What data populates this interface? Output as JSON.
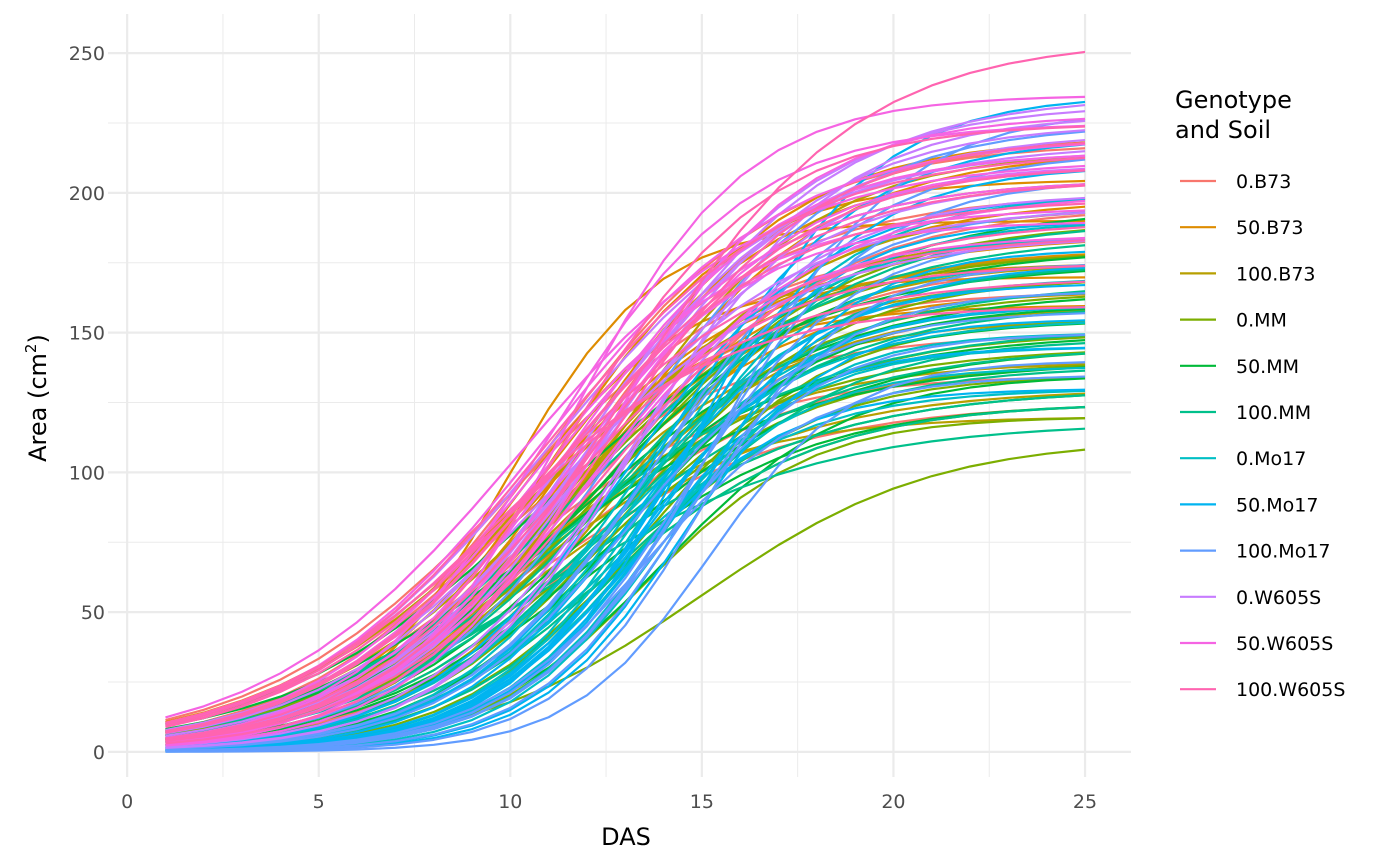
{
  "chart_data": {
    "type": "line",
    "xlabel": "DAS",
    "ylabel": {
      "prefix": "Area (cm",
      "superscript": "2",
      "suffix": ")"
    },
    "xlim": [
      -0.5,
      26.2
    ],
    "ylim": [
      -9,
      264
    ],
    "x_ticks": [
      0,
      5,
      10,
      15,
      20,
      25
    ],
    "x_tick_labels": [
      "0",
      "5",
      "10",
      "15",
      "20",
      "25"
    ],
    "y_ticks": [
      0,
      50,
      100,
      150,
      200,
      250
    ],
    "y_tick_labels": [
      "0",
      "50",
      "100",
      "150",
      "200",
      "250"
    ],
    "grid": true,
    "theme": "minimal",
    "legend": {
      "title_lines": [
        "Genotype",
        "and Soil"
      ],
      "position": "right"
    },
    "x": [
      1,
      2,
      3,
      4,
      5,
      6,
      7,
      8,
      9,
      10,
      11,
      12,
      13,
      14,
      15,
      16,
      17,
      18,
      19,
      20,
      21,
      22,
      23,
      24,
      25
    ],
    "series": [
      {
        "name": "0.B73",
        "color": "#F8766D",
        "curves": [
          {
            "asym": 218,
            "mid": 11.0,
            "scale": 3.0
          },
          {
            "asym": 200,
            "mid": 10.5,
            "scale": 3.2
          },
          {
            "asym": 185,
            "mid": 10.0,
            "scale": 3.3
          },
          {
            "asym": 165,
            "mid": 10.0,
            "scale": 3.0
          },
          {
            "asym": 150,
            "mid": 9.5,
            "scale": 3.2
          },
          {
            "asym": 135,
            "mid": 9.8,
            "scale": 3.0
          },
          {
            "asym": 125,
            "mid": 10.5,
            "scale": 3.4
          },
          {
            "asym": 220,
            "mid": 12.0,
            "scale": 2.9
          },
          {
            "asym": 175,
            "mid": 11.5,
            "scale": 3.1
          },
          {
            "asym": 160,
            "mid": 12.5,
            "scale": 2.8
          },
          {
            "asym": 140,
            "mid": 11.0,
            "scale": 3.3
          },
          {
            "asym": 195,
            "mid": 12.5,
            "scale": 3.0
          }
        ]
      },
      {
        "name": "50.B73",
        "color": "#DE8C00",
        "curves": [
          {
            "asym": 190,
            "mid": 9.8,
            "scale": 2.0
          },
          {
            "asym": 170,
            "mid": 9.8,
            "scale": 2.3
          },
          {
            "asym": 205,
            "mid": 11.0,
            "scale": 2.5
          },
          {
            "asym": 185,
            "mid": 10.5,
            "scale": 3.4
          },
          {
            "asym": 220,
            "mid": 11.8,
            "scale": 2.8
          },
          {
            "asym": 160,
            "mid": 10.0,
            "scale": 2.6
          },
          {
            "asym": 180,
            "mid": 11.5,
            "scale": 3.0
          },
          {
            "asym": 215,
            "mid": 12.5,
            "scale": 2.9
          },
          {
            "asym": 198,
            "mid": 12.0,
            "scale": 3.1
          },
          {
            "asym": 175,
            "mid": 10.8,
            "scale": 2.7
          },
          {
            "asym": 210,
            "mid": 11.2,
            "scale": 3.0
          },
          {
            "asym": 165,
            "mid": 11.5,
            "scale": 2.8
          }
        ]
      },
      {
        "name": "100.B73",
        "color": "#B79F00",
        "curves": [
          {
            "asym": 205,
            "mid": 11.0,
            "scale": 3.0
          },
          {
            "asym": 185,
            "mid": 11.5,
            "scale": 2.8
          },
          {
            "asym": 170,
            "mid": 10.8,
            "scale": 3.2
          },
          {
            "asym": 155,
            "mid": 11.0,
            "scale": 2.9
          },
          {
            "asym": 140,
            "mid": 10.5,
            "scale": 3.1
          },
          {
            "asym": 120,
            "mid": 10.0,
            "scale": 2.8
          },
          {
            "asym": 215,
            "mid": 12.5,
            "scale": 2.7
          },
          {
            "asym": 195,
            "mid": 12.0,
            "scale": 2.9
          },
          {
            "asym": 175,
            "mid": 12.5,
            "scale": 2.6
          },
          {
            "asym": 160,
            "mid": 11.8,
            "scale": 3.0
          },
          {
            "asym": 130,
            "mid": 11.0,
            "scale": 3.3
          },
          {
            "asym": 180,
            "mid": 10.5,
            "scale": 3.4
          }
        ]
      },
      {
        "name": "0.MM",
        "color": "#7CAE00",
        "curves": [
          {
            "asym": 112,
            "mid": 15.0,
            "scale": 3.0
          },
          {
            "asym": 150,
            "mid": 12.5,
            "scale": 2.8
          },
          {
            "asym": 135,
            "mid": 13.0,
            "scale": 2.5
          },
          {
            "asym": 165,
            "mid": 12.0,
            "scale": 3.0
          },
          {
            "asym": 180,
            "mid": 11.5,
            "scale": 3.2
          },
          {
            "asym": 125,
            "mid": 12.5,
            "scale": 2.9
          },
          {
            "asym": 145,
            "mid": 11.0,
            "scale": 3.3
          },
          {
            "asym": 190,
            "mid": 12.5,
            "scale": 3.1
          },
          {
            "asym": 155,
            "mid": 13.5,
            "scale": 2.4
          },
          {
            "asym": 170,
            "mid": 13.0,
            "scale": 2.7
          },
          {
            "asym": 120,
            "mid": 13.5,
            "scale": 2.2
          },
          {
            "asym": 140,
            "mid": 12.0,
            "scale": 3.0
          }
        ]
      },
      {
        "name": "50.MM",
        "color": "#00BA38",
        "curves": [
          {
            "asym": 135,
            "mid": 14.0,
            "scale": 2.4
          },
          {
            "asym": 150,
            "mid": 11.0,
            "scale": 3.5
          },
          {
            "asym": 165,
            "mid": 11.5,
            "scale": 3.4
          },
          {
            "asym": 180,
            "mid": 12.0,
            "scale": 3.2
          },
          {
            "asym": 125,
            "mid": 12.0,
            "scale": 3.0
          },
          {
            "asym": 195,
            "mid": 12.5,
            "scale": 3.3
          },
          {
            "asym": 140,
            "mid": 10.5,
            "scale": 3.6
          },
          {
            "asym": 160,
            "mid": 13.0,
            "scale": 2.6
          },
          {
            "asym": 145,
            "mid": 12.5,
            "scale": 3.1
          },
          {
            "asym": 130,
            "mid": 11.5,
            "scale": 3.4
          },
          {
            "asym": 175,
            "mid": 10.8,
            "scale": 3.5
          },
          {
            "asym": 155,
            "mid": 12.0,
            "scale": 2.9
          }
        ]
      },
      {
        "name": "100.MM",
        "color": "#00C08B",
        "curves": [
          {
            "asym": 118,
            "mid": 11.0,
            "scale": 3.6
          },
          {
            "asym": 130,
            "mid": 11.5,
            "scale": 3.4
          },
          {
            "asym": 145,
            "mid": 12.0,
            "scale": 3.2
          },
          {
            "asym": 160,
            "mid": 12.5,
            "scale": 3.0
          },
          {
            "asym": 175,
            "mid": 13.0,
            "scale": 2.8
          },
          {
            "asym": 190,
            "mid": 12.8,
            "scale": 3.1
          },
          {
            "asym": 138,
            "mid": 13.0,
            "scale": 2.7
          },
          {
            "asym": 152,
            "mid": 11.2,
            "scale": 3.5
          },
          {
            "asym": 168,
            "mid": 12.0,
            "scale": 3.3
          },
          {
            "asym": 125,
            "mid": 12.5,
            "scale": 2.9
          },
          {
            "asym": 185,
            "mid": 11.8,
            "scale": 3.4
          },
          {
            "asym": 148,
            "mid": 13.5,
            "scale": 2.6
          }
        ]
      },
      {
        "name": "0.Mo17",
        "color": "#00BFC4",
        "curves": [
          {
            "asym": 175,
            "mid": 13.5,
            "scale": 2.2
          },
          {
            "asym": 160,
            "mid": 13.0,
            "scale": 2.4
          },
          {
            "asym": 145,
            "mid": 13.5,
            "scale": 2.1
          },
          {
            "asym": 190,
            "mid": 14.0,
            "scale": 2.3
          },
          {
            "asym": 130,
            "mid": 12.5,
            "scale": 2.5
          },
          {
            "asym": 200,
            "mid": 13.8,
            "scale": 2.5
          },
          {
            "asym": 150,
            "mid": 14.0,
            "scale": 2.0
          },
          {
            "asym": 170,
            "mid": 12.8,
            "scale": 2.6
          },
          {
            "asym": 138,
            "mid": 13.2,
            "scale": 2.2
          },
          {
            "asym": 185,
            "mid": 13.0,
            "scale": 2.4
          },
          {
            "asym": 155,
            "mid": 12.5,
            "scale": 2.7
          },
          {
            "asym": 165,
            "mid": 14.2,
            "scale": 2.1
          }
        ]
      },
      {
        "name": "50.Mo17",
        "color": "#00B4F0",
        "curves": [
          {
            "asym": 235,
            "mid": 15.0,
            "scale": 2.2
          },
          {
            "asym": 210,
            "mid": 14.5,
            "scale": 2.3
          },
          {
            "asym": 190,
            "mid": 14.0,
            "scale": 2.1
          },
          {
            "asym": 175,
            "mid": 14.0,
            "scale": 2.4
          },
          {
            "asym": 160,
            "mid": 13.5,
            "scale": 2.2
          },
          {
            "asym": 145,
            "mid": 13.5,
            "scale": 2.0
          },
          {
            "asym": 130,
            "mid": 13.0,
            "scale": 2.1
          },
          {
            "asym": 200,
            "mid": 13.0,
            "scale": 2.6
          },
          {
            "asym": 180,
            "mid": 14.8,
            "scale": 2.0
          },
          {
            "asym": 155,
            "mid": 14.5,
            "scale": 1.9
          },
          {
            "asym": 220,
            "mid": 14.0,
            "scale": 2.5
          },
          {
            "asym": 168,
            "mid": 13.2,
            "scale": 2.3
          }
        ]
      },
      {
        "name": "100.Mo17",
        "color": "#619CFF",
        "curves": [
          {
            "asym": 230,
            "mid": 15.5,
            "scale": 2.3
          },
          {
            "asym": 205,
            "mid": 15.0,
            "scale": 2.2
          },
          {
            "asym": 185,
            "mid": 14.5,
            "scale": 2.2
          },
          {
            "asym": 165,
            "mid": 14.5,
            "scale": 2.0
          },
          {
            "asym": 150,
            "mid": 14.0,
            "scale": 2.1
          },
          {
            "asym": 135,
            "mid": 13.5,
            "scale": 2.2
          },
          {
            "asym": 195,
            "mid": 13.5,
            "scale": 2.5
          },
          {
            "asym": 215,
            "mid": 14.0,
            "scale": 2.6
          },
          {
            "asym": 175,
            "mid": 15.0,
            "scale": 1.9
          },
          {
            "asym": 140,
            "mid": 15.2,
            "scale": 1.8
          },
          {
            "asym": 225,
            "mid": 13.0,
            "scale": 2.8
          },
          {
            "asym": 158,
            "mid": 13.0,
            "scale": 2.4
          }
        ]
      },
      {
        "name": "0.W605S",
        "color": "#C77CFF",
        "curves": [
          {
            "asym": 235,
            "mid": 12.5,
            "scale": 3.0
          },
          {
            "asym": 225,
            "mid": 12.5,
            "scale": 2.8
          },
          {
            "asym": 215,
            "mid": 12.0,
            "scale": 2.7
          },
          {
            "asym": 205,
            "mid": 12.0,
            "scale": 2.9
          },
          {
            "asym": 228,
            "mid": 13.5,
            "scale": 2.5
          },
          {
            "asym": 195,
            "mid": 11.5,
            "scale": 3.0
          },
          {
            "asym": 218,
            "mid": 11.0,
            "scale": 3.3
          },
          {
            "asym": 210,
            "mid": 13.0,
            "scale": 2.4
          },
          {
            "asym": 222,
            "mid": 11.8,
            "scale": 3.1
          },
          {
            "asym": 200,
            "mid": 12.8,
            "scale": 2.6
          },
          {
            "asym": 185,
            "mid": 11.0,
            "scale": 3.2
          },
          {
            "asym": 232,
            "mid": 12.2,
            "scale": 2.9
          }
        ]
      },
      {
        "name": "50.W605S",
        "color": "#F564E3",
        "curves": [
          {
            "asym": 235,
            "mid": 11.5,
            "scale": 2.3
          },
          {
            "asym": 225,
            "mid": 11.0,
            "scale": 2.6
          },
          {
            "asym": 215,
            "mid": 11.5,
            "scale": 2.8
          },
          {
            "asym": 205,
            "mid": 11.0,
            "scale": 3.0
          },
          {
            "asym": 195,
            "mid": 10.5,
            "scale": 2.9
          },
          {
            "asym": 210,
            "mid": 12.0,
            "scale": 2.7
          },
          {
            "asym": 228,
            "mid": 12.5,
            "scale": 2.5
          },
          {
            "asym": 185,
            "mid": 11.8,
            "scale": 2.6
          },
          {
            "asym": 220,
            "mid": 10.8,
            "scale": 3.2
          },
          {
            "asym": 200,
            "mid": 12.3,
            "scale": 3.0
          },
          {
            "asym": 190,
            "mid": 11.2,
            "scale": 2.5
          },
          {
            "asym": 212,
            "mid": 10.2,
            "scale": 3.3
          }
        ]
      },
      {
        "name": "100.W605S",
        "color": "#FF64B0",
        "curves": [
          {
            "asym": 255,
            "mid": 13.0,
            "scale": 3.0
          },
          {
            "asym": 225,
            "mid": 11.5,
            "scale": 2.6
          },
          {
            "asym": 210,
            "mid": 12.0,
            "scale": 2.8
          },
          {
            "asym": 198,
            "mid": 11.0,
            "scale": 3.0
          },
          {
            "asym": 185,
            "mid": 10.5,
            "scale": 3.2
          },
          {
            "asym": 170,
            "mid": 10.0,
            "scale": 3.3
          },
          {
            "asym": 160,
            "mid": 9.5,
            "scale": 3.0
          },
          {
            "asym": 220,
            "mid": 12.5,
            "scale": 2.7
          },
          {
            "asym": 205,
            "mid": 11.2,
            "scale": 3.1
          },
          {
            "asym": 190,
            "mid": 12.2,
            "scale": 2.9
          },
          {
            "asym": 175,
            "mid": 11.0,
            "scale": 2.8
          },
          {
            "asym": 215,
            "mid": 10.8,
            "scale": 3.2
          }
        ]
      }
    ]
  }
}
